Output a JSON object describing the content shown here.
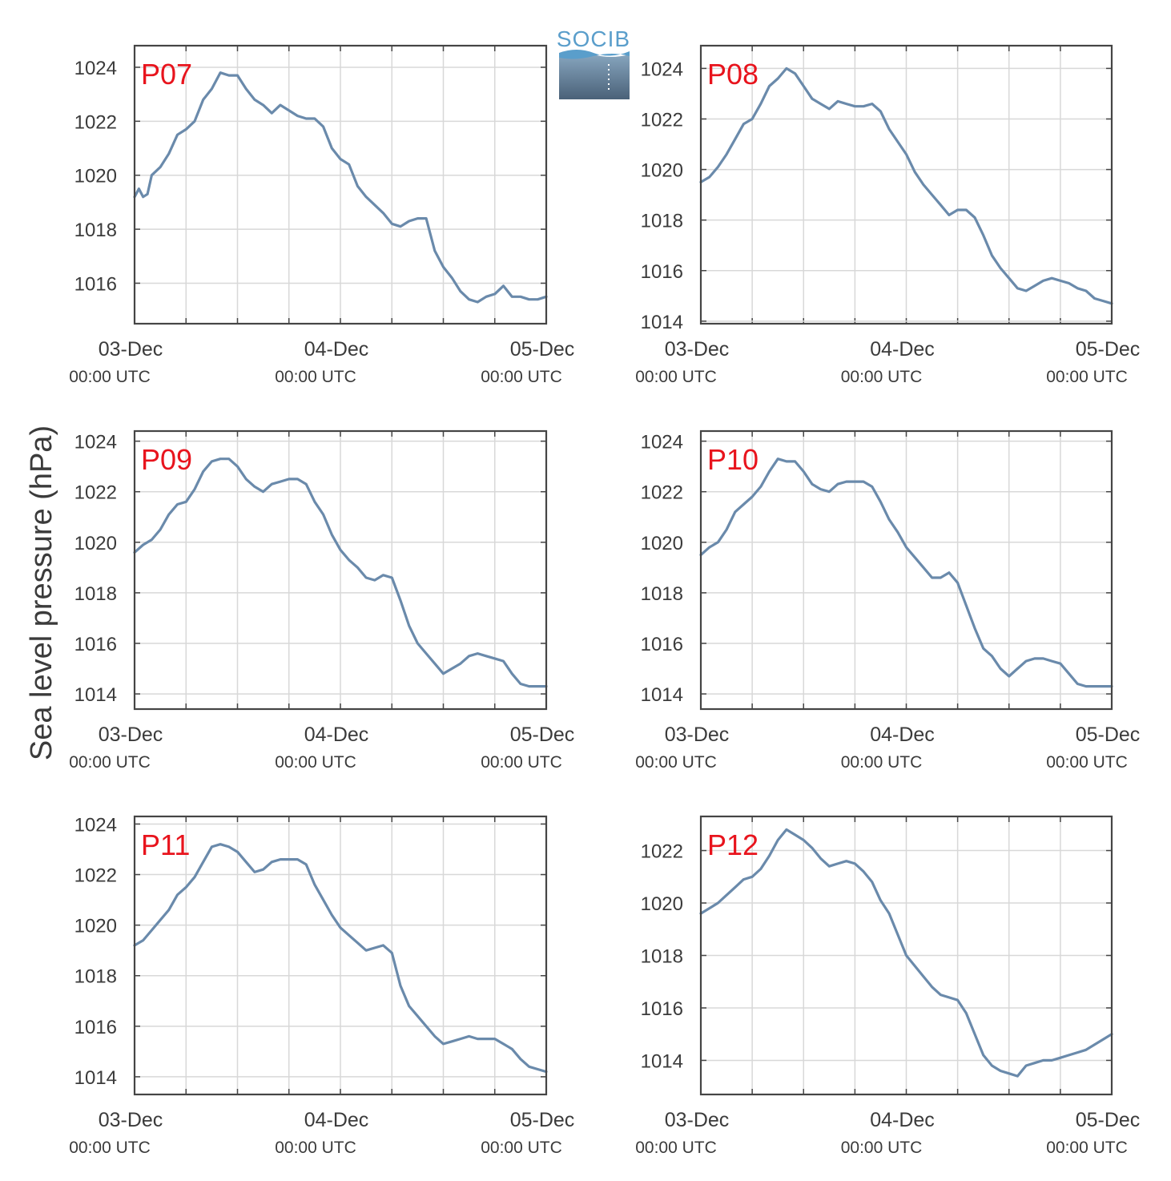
{
  "colors": {
    "line": "#6a8aab",
    "panel_label": "#e8141d",
    "axis": "#454545",
    "grid": "#d8d8d8",
    "text": "#3b3b3b",
    "logo_text": "#5a9ecb"
  },
  "figure": {
    "ylabel": "Sea level pressure (hPa)"
  },
  "logo": {
    "text": "SOCIB"
  },
  "x_tick_labels": {
    "dates": [
      "03-Dec",
      "04-Dec",
      "05-Dec"
    ],
    "times": [
      "00:00 UTC",
      "00:00 UTC",
      "00:00 UTC"
    ]
  },
  "chart_data": [
    {
      "type": "line",
      "label": "P07",
      "x_range_hours": [
        0,
        48
      ],
      "ylim": [
        1014.5,
        1024.8
      ],
      "yticks": [
        1016,
        1018,
        1020,
        1022,
        1024
      ],
      "grid": true,
      "series": [
        {
          "x": [
            0,
            0.5,
            1,
            1.5,
            2,
            3,
            4,
            5,
            6,
            7,
            8,
            9,
            10,
            11,
            12,
            13,
            14,
            15,
            16,
            17,
            18,
            19,
            20,
            21,
            22,
            23,
            24,
            25,
            26,
            27,
            28,
            29,
            30,
            31,
            32,
            33,
            34,
            35,
            36,
            37,
            38,
            39,
            40,
            41,
            42,
            43,
            44,
            45,
            46,
            47,
            48
          ],
          "values": [
            1019.2,
            1019.5,
            1019.2,
            1019.3,
            1020,
            1020.3,
            1020.8,
            1021.5,
            1021.7,
            1022,
            1022.8,
            1023.2,
            1023.8,
            1023.7,
            1023.7,
            1023.2,
            1022.8,
            1022.6,
            1022.3,
            1022.6,
            1022.4,
            1022.2,
            1022.1,
            1022.1,
            1021.8,
            1021,
            1020.6,
            1020.4,
            1019.6,
            1019.2,
            1018.9,
            1018.6,
            1018.2,
            1018.1,
            1018.3,
            1018.4,
            1018.4,
            1017.2,
            1016.6,
            1016.2,
            1015.7,
            1015.4,
            1015.3,
            1015.5,
            1015.6,
            1015.9,
            1015.5,
            1015.5,
            1015.4,
            1015.4,
            1015.5
          ]
        }
      ]
    },
    {
      "type": "line",
      "label": "P08",
      "x_range_hours": [
        0,
        48
      ],
      "ylim": [
        1013.9,
        1024.9
      ],
      "yticks": [
        1014,
        1016,
        1018,
        1020,
        1022,
        1024
      ],
      "grid": true,
      "series": [
        {
          "x": [
            0,
            1,
            2,
            3,
            4,
            5,
            6,
            7,
            8,
            9,
            10,
            11,
            12,
            13,
            14,
            15,
            16,
            17,
            18,
            19,
            20,
            21,
            22,
            23,
            24,
            25,
            26,
            27,
            28,
            29,
            30,
            31,
            32,
            33,
            34,
            35,
            36,
            37,
            38,
            39,
            40,
            41,
            42,
            43,
            44,
            45,
            46,
            47,
            48
          ],
          "values": [
            1019.5,
            1019.7,
            1020.1,
            1020.6,
            1021.2,
            1021.8,
            1022,
            1022.6,
            1023.3,
            1023.6,
            1024,
            1023.8,
            1023.3,
            1022.8,
            1022.6,
            1022.4,
            1022.7,
            1022.6,
            1022.5,
            1022.5,
            1022.6,
            1022.3,
            1021.6,
            1021.1,
            1020.6,
            1019.9,
            1019.4,
            1019,
            1018.6,
            1018.2,
            1018.4,
            1018.4,
            1018.1,
            1017.4,
            1016.6,
            1016.1,
            1015.7,
            1015.3,
            1015.2,
            1015.4,
            1015.6,
            1015.7,
            1015.6,
            1015.5,
            1015.3,
            1015.2,
            1014.9,
            1014.8,
            1014.7
          ]
        }
      ]
    },
    {
      "type": "line",
      "label": "P09",
      "x_range_hours": [
        0,
        48
      ],
      "ylim": [
        1013.4,
        1024.4
      ],
      "yticks": [
        1014,
        1016,
        1018,
        1020,
        1022,
        1024
      ],
      "grid": true,
      "series": [
        {
          "x": [
            0,
            1,
            2,
            3,
            4,
            5,
            6,
            7,
            8,
            9,
            10,
            11,
            12,
            13,
            14,
            15,
            16,
            17,
            18,
            19,
            20,
            21,
            22,
            23,
            24,
            25,
            26,
            27,
            28,
            29,
            30,
            31,
            32,
            33,
            34,
            35,
            36,
            37,
            38,
            39,
            40,
            41,
            42,
            43,
            44,
            45,
            46,
            47,
            48
          ],
          "values": [
            1019.6,
            1019.9,
            1020.1,
            1020.5,
            1021.1,
            1021.5,
            1021.6,
            1022.1,
            1022.8,
            1023.2,
            1023.3,
            1023.3,
            1023,
            1022.5,
            1022.2,
            1022,
            1022.3,
            1022.4,
            1022.5,
            1022.5,
            1022.3,
            1021.6,
            1021.1,
            1020.3,
            1019.7,
            1019.3,
            1019,
            1018.6,
            1018.5,
            1018.7,
            1018.6,
            1017.7,
            1016.7,
            1016,
            1015.6,
            1015.2,
            1014.8,
            1015,
            1015.2,
            1015.5,
            1015.6,
            1015.5,
            1015.4,
            1015.3,
            1014.8,
            1014.4,
            1014.3,
            1014.3,
            1014.3
          ]
        }
      ]
    },
    {
      "type": "line",
      "label": "P10",
      "x_range_hours": [
        0,
        48
      ],
      "ylim": [
        1013.4,
        1024.4
      ],
      "yticks": [
        1014,
        1016,
        1018,
        1020,
        1022,
        1024
      ],
      "grid": true,
      "series": [
        {
          "x": [
            0,
            1,
            2,
            3,
            4,
            5,
            6,
            7,
            8,
            9,
            10,
            11,
            12,
            13,
            14,
            15,
            16,
            17,
            18,
            19,
            20,
            21,
            22,
            23,
            24,
            25,
            26,
            27,
            28,
            29,
            30,
            31,
            32,
            33,
            34,
            35,
            36,
            37,
            38,
            39,
            40,
            41,
            42,
            43,
            44,
            45,
            46,
            47,
            48
          ],
          "values": [
            1019.5,
            1019.8,
            1020,
            1020.5,
            1021.2,
            1021.5,
            1021.8,
            1022.2,
            1022.8,
            1023.3,
            1023.2,
            1023.2,
            1022.8,
            1022.3,
            1022.1,
            1022,
            1022.3,
            1022.4,
            1022.4,
            1022.4,
            1022.2,
            1021.6,
            1020.9,
            1020.4,
            1019.8,
            1019.4,
            1019,
            1018.6,
            1018.6,
            1018.8,
            1018.4,
            1017.5,
            1016.6,
            1015.8,
            1015.5,
            1015,
            1014.7,
            1015,
            1015.3,
            1015.4,
            1015.4,
            1015.3,
            1015.2,
            1014.8,
            1014.4,
            1014.3,
            1014.3,
            1014.3,
            1014.3
          ]
        }
      ]
    },
    {
      "type": "line",
      "label": "P11",
      "x_range_hours": [
        0,
        48
      ],
      "ylim": [
        1013.3,
        1024.3
      ],
      "yticks": [
        1014,
        1016,
        1018,
        1020,
        1022,
        1024
      ],
      "grid": true,
      "series": [
        {
          "x": [
            0,
            1,
            2,
            3,
            4,
            5,
            6,
            7,
            8,
            9,
            10,
            11,
            12,
            13,
            14,
            15,
            16,
            17,
            18,
            19,
            20,
            21,
            22,
            23,
            24,
            25,
            26,
            27,
            28,
            29,
            30,
            31,
            32,
            33,
            34,
            35,
            36,
            37,
            38,
            39,
            40,
            41,
            42,
            43,
            44,
            45,
            46,
            47,
            48
          ],
          "values": [
            1019.2,
            1019.4,
            1019.8,
            1020.2,
            1020.6,
            1021.2,
            1021.5,
            1021.9,
            1022.5,
            1023.1,
            1023.2,
            1023.1,
            1022.9,
            1022.5,
            1022.1,
            1022.2,
            1022.5,
            1022.6,
            1022.6,
            1022.6,
            1022.4,
            1021.6,
            1021,
            1020.4,
            1019.9,
            1019.6,
            1019.3,
            1019,
            1019.1,
            1019.2,
            1018.9,
            1017.6,
            1016.8,
            1016.4,
            1016,
            1015.6,
            1015.3,
            1015.4,
            1015.5,
            1015.6,
            1015.5,
            1015.5,
            1015.5,
            1015.3,
            1015.1,
            1014.7,
            1014.4,
            1014.3,
            1014.2
          ]
        }
      ]
    },
    {
      "type": "line",
      "label": "P12",
      "x_range_hours": [
        0,
        48
      ],
      "ylim": [
        1012.7,
        1023.3
      ],
      "yticks": [
        1014,
        1016,
        1018,
        1020,
        1022
      ],
      "grid": true,
      "series": [
        {
          "x": [
            0,
            1,
            2,
            3,
            4,
            5,
            6,
            7,
            8,
            9,
            10,
            11,
            12,
            13,
            14,
            15,
            16,
            17,
            18,
            19,
            20,
            21,
            22,
            23,
            24,
            25,
            26,
            27,
            28,
            29,
            30,
            31,
            32,
            33,
            34,
            35,
            36,
            37,
            38,
            39,
            40,
            41,
            42,
            43,
            44,
            45,
            46,
            47,
            48
          ],
          "values": [
            1019.6,
            1019.8,
            1020,
            1020.3,
            1020.6,
            1020.9,
            1021,
            1021.3,
            1021.8,
            1022.4,
            1022.8,
            1022.6,
            1022.4,
            1022.1,
            1021.7,
            1021.4,
            1021.5,
            1021.6,
            1021.5,
            1021.2,
            1020.8,
            1020.1,
            1019.6,
            1018.8,
            1018,
            1017.6,
            1017.2,
            1016.8,
            1016.5,
            1016.4,
            1016.3,
            1015.8,
            1015,
            1014.2,
            1013.8,
            1013.6,
            1013.5,
            1013.4,
            1013.8,
            1013.9,
            1014,
            1014,
            1014.1,
            1014.2,
            1014.3,
            1014.4,
            1014.6,
            1014.8,
            1015
          ]
        }
      ]
    }
  ]
}
